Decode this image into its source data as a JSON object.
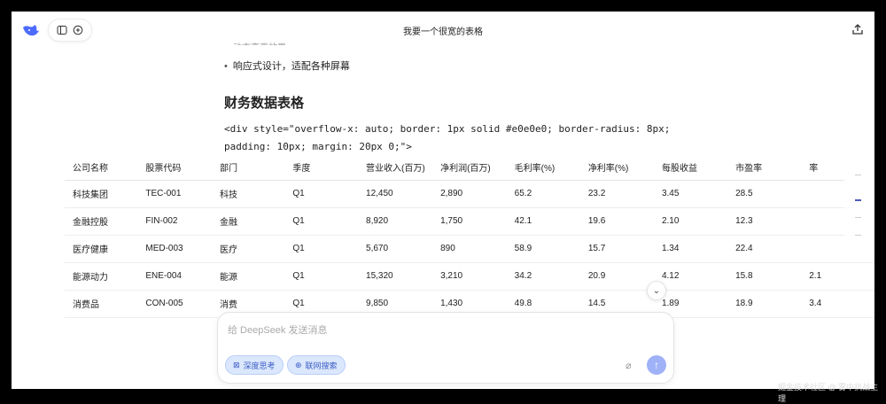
{
  "header": {
    "title": "我要一个很宽的表格"
  },
  "content": {
    "faded_line": "动态高亮效果",
    "bullet": "响应式设计，适配各种屏幕",
    "heading": "财务数据表格",
    "code_line1": "<div style=\"overflow-x: auto; border: 1px solid #e0e0e0; border-radius: 8px;",
    "code_line2": "padding: 10px; margin: 20px 0;\">"
  },
  "table": {
    "headers": [
      "公司名称",
      "股票代码",
      "部门",
      "季度",
      "营业收入(百万)",
      "净利润(百万)",
      "毛利率(%)",
      "净利率(%)",
      "每股收益",
      "市盈率",
      "率"
    ],
    "rows": [
      [
        "科技集团",
        "TEC-001",
        "科技",
        "Q1",
        "12,450",
        "2,890",
        "65.2",
        "23.2",
        "3.45",
        "28.5",
        ""
      ],
      [
        "金融控股",
        "FIN-002",
        "金融",
        "Q1",
        "8,920",
        "1,750",
        "42.1",
        "19.6",
        "2.10",
        "12.3",
        ""
      ],
      [
        "医疗健康",
        "MED-003",
        "医疗",
        "Q1",
        "5,670",
        "890",
        "58.9",
        "15.7",
        "1.34",
        "22.4",
        ""
      ],
      [
        "能源动力",
        "ENE-004",
        "能源",
        "Q1",
        "15,320",
        "3,210",
        "34.2",
        "20.9",
        "4.12",
        "15.8",
        "2.1"
      ],
      [
        "消费品",
        "CON-005",
        "消费",
        "Q1",
        "9,850",
        "1,430",
        "49.8",
        "14.5",
        "1.89",
        "18.9",
        "3.4"
      ]
    ]
  },
  "composer": {
    "placeholder": "给 DeepSeek 发送消息",
    "deep_think": "深度思考",
    "web_search": "联网搜索"
  },
  "watermark": "掘金技术社区 @ 雾中抗战主理",
  "colors": {
    "accent": "#4d6bfe",
    "chip_bg": "#dbe7fd",
    "send": "#9fb2f7"
  }
}
